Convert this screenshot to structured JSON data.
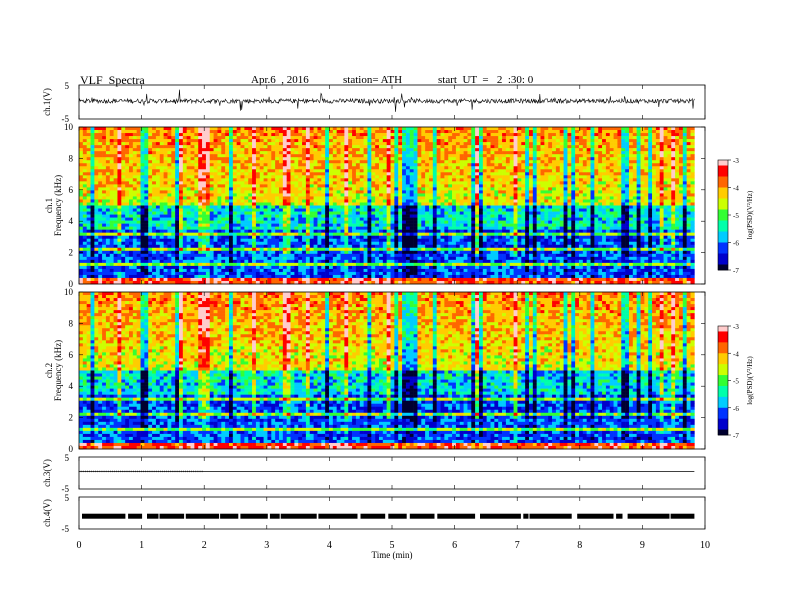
{
  "header": {
    "title": "VLF  Spectra",
    "date": "Apr.6  , 2016",
    "station": "station= ATH",
    "start": "start  UT  =   2  :30: 0"
  },
  "chart_data": [
    {
      "type": "line",
      "panel": "ch1",
      "ylabel": "ch.1(V)",
      "yticks": [
        "5",
        "-5"
      ],
      "ylim": [
        -5,
        5
      ],
      "xlim": [
        0,
        10
      ],
      "description_values": "noisy waveform centered near 0.3 V with spikes to about +/-3 V"
    },
    {
      "type": "heatmap",
      "panel": "ch1-spectrogram",
      "ylabel": "ch.1\nFrequency (kHz)",
      "ylabel_lines": [
        "ch.1",
        "Frequency (kHz)"
      ],
      "yticks": [
        "0",
        "2",
        "4",
        "6",
        "8",
        "10"
      ],
      "ylim": [
        0,
        10
      ],
      "xlim": [
        0,
        9.83
      ],
      "colorbar": {
        "label": "log(PSD)(V²/Hz)",
        "ticks": [
          "-3",
          "-4",
          "-5",
          "-6",
          "-7"
        ],
        "range": [
          -7,
          -3
        ]
      }
    },
    {
      "type": "heatmap",
      "panel": "ch2-spectrogram",
      "ylabel_lines": [
        "ch.2",
        "Frequency (kHz)"
      ],
      "yticks": [
        "0",
        "2",
        "4",
        "6",
        "8",
        "10"
      ],
      "ylim": [
        0,
        10
      ],
      "xlim": [
        0,
        9.83
      ],
      "colorbar": {
        "label": "log(PSD)(V²/Hz)",
        "ticks": [
          "-3",
          "-4",
          "-5",
          "-6",
          "-7"
        ],
        "range": [
          -7,
          -3
        ]
      }
    },
    {
      "type": "line",
      "panel": "ch3",
      "ylabel": "ch.3(V)",
      "yticks": [
        "5",
        "-5"
      ],
      "ylim": [
        -5,
        5
      ],
      "xlim": [
        0,
        10
      ]
    },
    {
      "type": "line",
      "panel": "ch4",
      "ylabel": "ch.4(V)",
      "yticks": [
        "5",
        "-5"
      ],
      "ylim": [
        -5,
        5
      ],
      "xlim": [
        0,
        10
      ]
    }
  ],
  "xaxis": {
    "label": "Time  (min)",
    "ticks": [
      "0",
      "1",
      "2",
      "3",
      "4",
      "5",
      "6",
      "7",
      "8",
      "9",
      "10"
    ]
  },
  "colors": {
    "spectrogram_scale": [
      "#000030",
      "#0000cc",
      "#0033ff",
      "#00ccff",
      "#00ffaa",
      "#33ff33",
      "#ccff00",
      "#ffcc00",
      "#ff6600",
      "#ff0000",
      "#ffcccc"
    ]
  }
}
